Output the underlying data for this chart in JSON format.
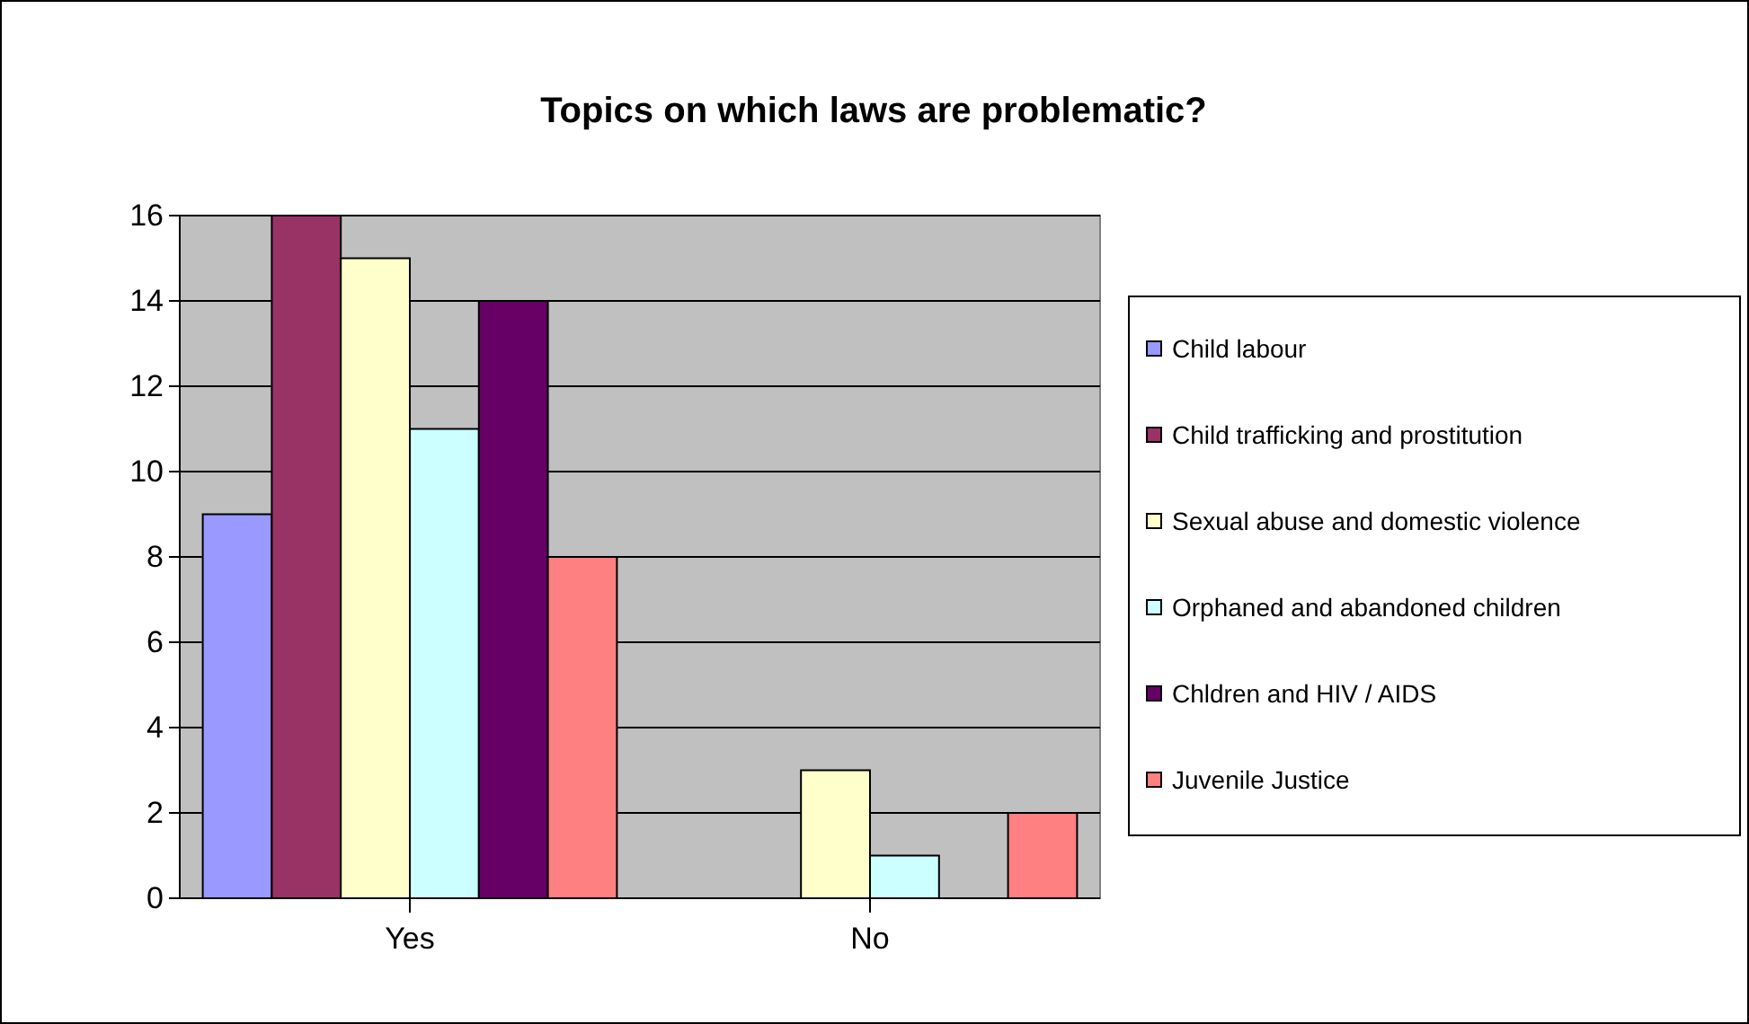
{
  "chart_data": {
    "type": "bar",
    "title": "Topics on which laws are problematic?",
    "categories": [
      "Yes",
      "No"
    ],
    "series": [
      {
        "name": "Child labour",
        "color": "#9999ff",
        "values": [
          9,
          0
        ]
      },
      {
        "name": "Child trafficking and prostitution",
        "color": "#993366",
        "values": [
          16,
          0
        ]
      },
      {
        "name": "Sexual abuse and domestic violence",
        "color": "#ffffcc",
        "values": [
          15,
          3
        ]
      },
      {
        "name": "Orphaned and abandoned children",
        "color": "#ccffff",
        "values": [
          11,
          1
        ]
      },
      {
        "name": "Chldren and HIV / AIDS",
        "color": "#660066",
        "values": [
          14,
          0
        ]
      },
      {
        "name": "Juvenile Justice",
        "color": "#ff8080",
        "values": [
          8,
          2
        ]
      }
    ],
    "ylim": [
      0,
      16
    ],
    "yticks": [
      0,
      2,
      4,
      6,
      8,
      10,
      12,
      14,
      16
    ],
    "grid": "y",
    "legend": "right"
  }
}
